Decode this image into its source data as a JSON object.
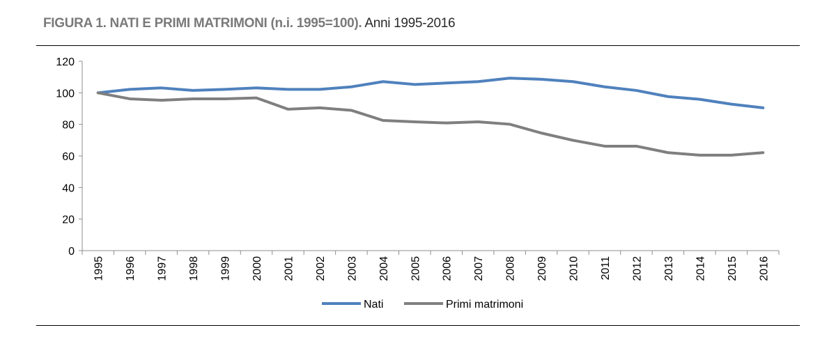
{
  "figure": {
    "title_bold": "FIGURA 1. NATI E PRIMI MATRIMONI (n.i. 1995=100).",
    "title_rest": "Anni 1995-2016"
  },
  "chart_data": {
    "type": "line",
    "title": "FIGURA 1. NATI E PRIMI MATRIMONI (n.i. 1995=100). Anni 1995-2016",
    "xlabel": "",
    "ylabel": "",
    "ylim": [
      0,
      120
    ],
    "yticks": [
      0,
      20,
      40,
      60,
      80,
      100,
      120
    ],
    "grid": false,
    "legend_position": "bottom",
    "categories": [
      "1995",
      "1996",
      "1997",
      "1998",
      "1999",
      "2000",
      "2001",
      "2002",
      "2003",
      "2004",
      "2005",
      "2006",
      "2007",
      "2008",
      "2009",
      "2010",
      "2011",
      "2012",
      "2013",
      "2014",
      "2015",
      "2016"
    ],
    "series": [
      {
        "name": "Nati",
        "color": "#4f81bd",
        "values": [
          100,
          102.2,
          103.1,
          101.5,
          102.2,
          103.1,
          102.2,
          102.2,
          103.8,
          107.1,
          105.3,
          106.2,
          107.1,
          109.3,
          108.6,
          107.1,
          103.8,
          101.5,
          97.6,
          95.9,
          92.8,
          90.5
        ]
      },
      {
        "name": "Primi matrimoni",
        "color": "#7f7f7f",
        "values": [
          100,
          96.2,
          95.3,
          96.2,
          96.2,
          96.8,
          89.6,
          90.5,
          88.9,
          82.5,
          81.6,
          80.9,
          81.6,
          80.1,
          74.5,
          69.9,
          66.2,
          66.2,
          62.1,
          60.5,
          60.5,
          62.1
        ]
      }
    ]
  }
}
